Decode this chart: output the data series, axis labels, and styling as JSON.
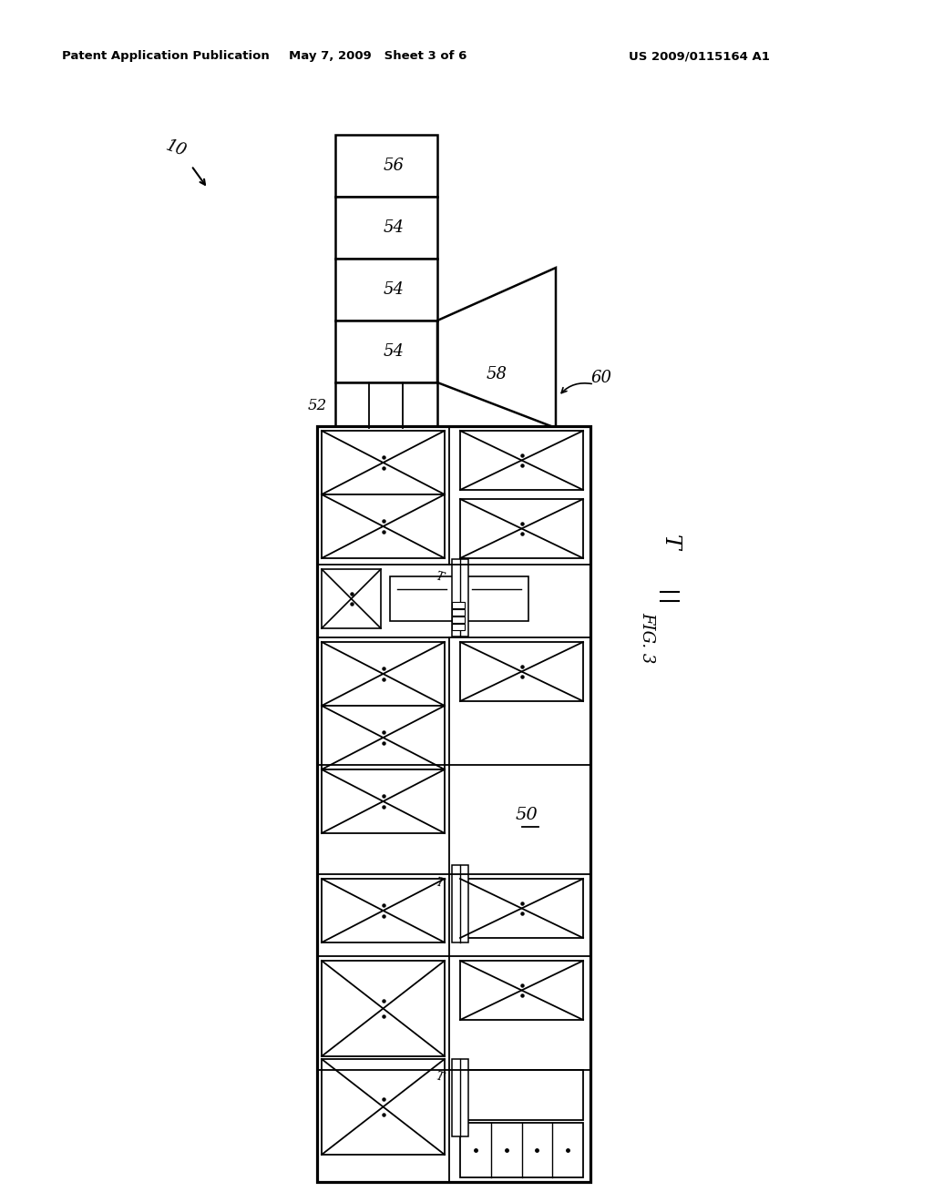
{
  "bg_color": "#ffffff",
  "lc": "#000000",
  "header_left": "Patent Application Publication",
  "header_mid": "May 7, 2009   Sheet 3 of 6",
  "header_right": "US 2009/0115164 A1",
  "fignum": "FIG. 3",
  "label_10": "10",
  "label_50": "50",
  "label_52": "52",
  "label_54a": "54",
  "label_54b": "54",
  "label_54c": "54",
  "label_56": "56",
  "label_58": "58",
  "label_60": "60"
}
